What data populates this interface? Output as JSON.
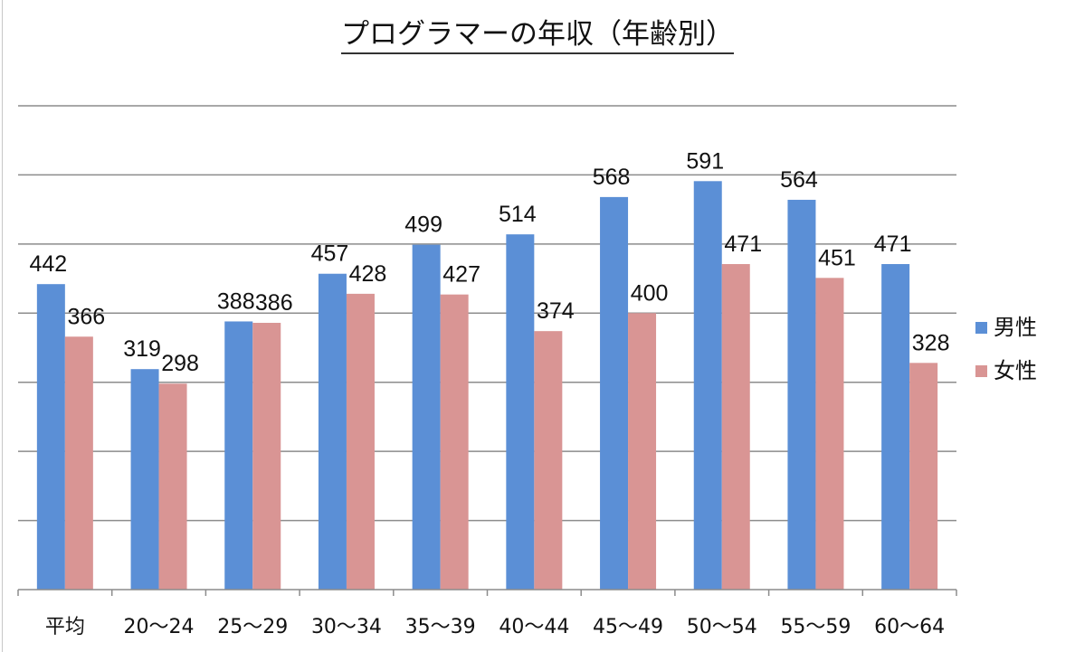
{
  "chart_data": {
    "type": "bar",
    "title": "プログラマーの年収（年齢別）",
    "xlabel": "",
    "ylabel": "",
    "ylim": [
      0,
      700
    ],
    "grid": true,
    "grid_step": 100,
    "legend_placement": "right",
    "categories": [
      "平均",
      "20〜24",
      "25〜29",
      "30〜34",
      "35〜39",
      "40〜44",
      "45〜49",
      "50〜54",
      "55〜59",
      "60〜64"
    ],
    "series": [
      {
        "name": "男性",
        "color": "#5b8fd6",
        "values": [
          442,
          319,
          388,
          457,
          499,
          514,
          568,
          591,
          564,
          471
        ]
      },
      {
        "name": "女性",
        "color": "#d99594",
        "values": [
          366,
          298,
          386,
          428,
          427,
          374,
          400,
          471,
          451,
          328
        ]
      }
    ]
  }
}
